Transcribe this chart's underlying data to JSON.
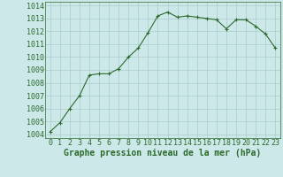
{
  "x": [
    0,
    1,
    2,
    3,
    4,
    5,
    6,
    7,
    8,
    9,
    10,
    11,
    12,
    13,
    14,
    15,
    16,
    17,
    18,
    19,
    20,
    21,
    22,
    23
  ],
  "y": [
    1004.2,
    1004.9,
    1006.0,
    1007.0,
    1008.6,
    1008.7,
    1008.7,
    1009.1,
    1010.0,
    1010.7,
    1011.9,
    1013.2,
    1013.5,
    1013.1,
    1013.2,
    1013.1,
    1013.0,
    1012.9,
    1012.2,
    1012.9,
    1012.9,
    1012.4,
    1011.8,
    1010.7
  ],
  "line_color": "#2d6a2d",
  "marker": "+",
  "marker_size": 3,
  "bg_color": "#cce8e8",
  "grid_color": "#aacccc",
  "xlabel": "Graphe pression niveau de la mer (hPa)",
  "xlabel_fontsize": 7,
  "ylabel_ticks": [
    1004,
    1005,
    1006,
    1007,
    1008,
    1009,
    1010,
    1011,
    1012,
    1013,
    1014
  ],
  "xlim": [
    -0.5,
    23.5
  ],
  "ylim": [
    1003.7,
    1014.3
  ],
  "xtick_labels": [
    "0",
    "1",
    "2",
    "3",
    "4",
    "5",
    "6",
    "7",
    "8",
    "9",
    "10",
    "11",
    "12",
    "13",
    "14",
    "15",
    "16",
    "17",
    "18",
    "19",
    "20",
    "21",
    "22",
    "23"
  ],
  "tick_fontsize": 6
}
